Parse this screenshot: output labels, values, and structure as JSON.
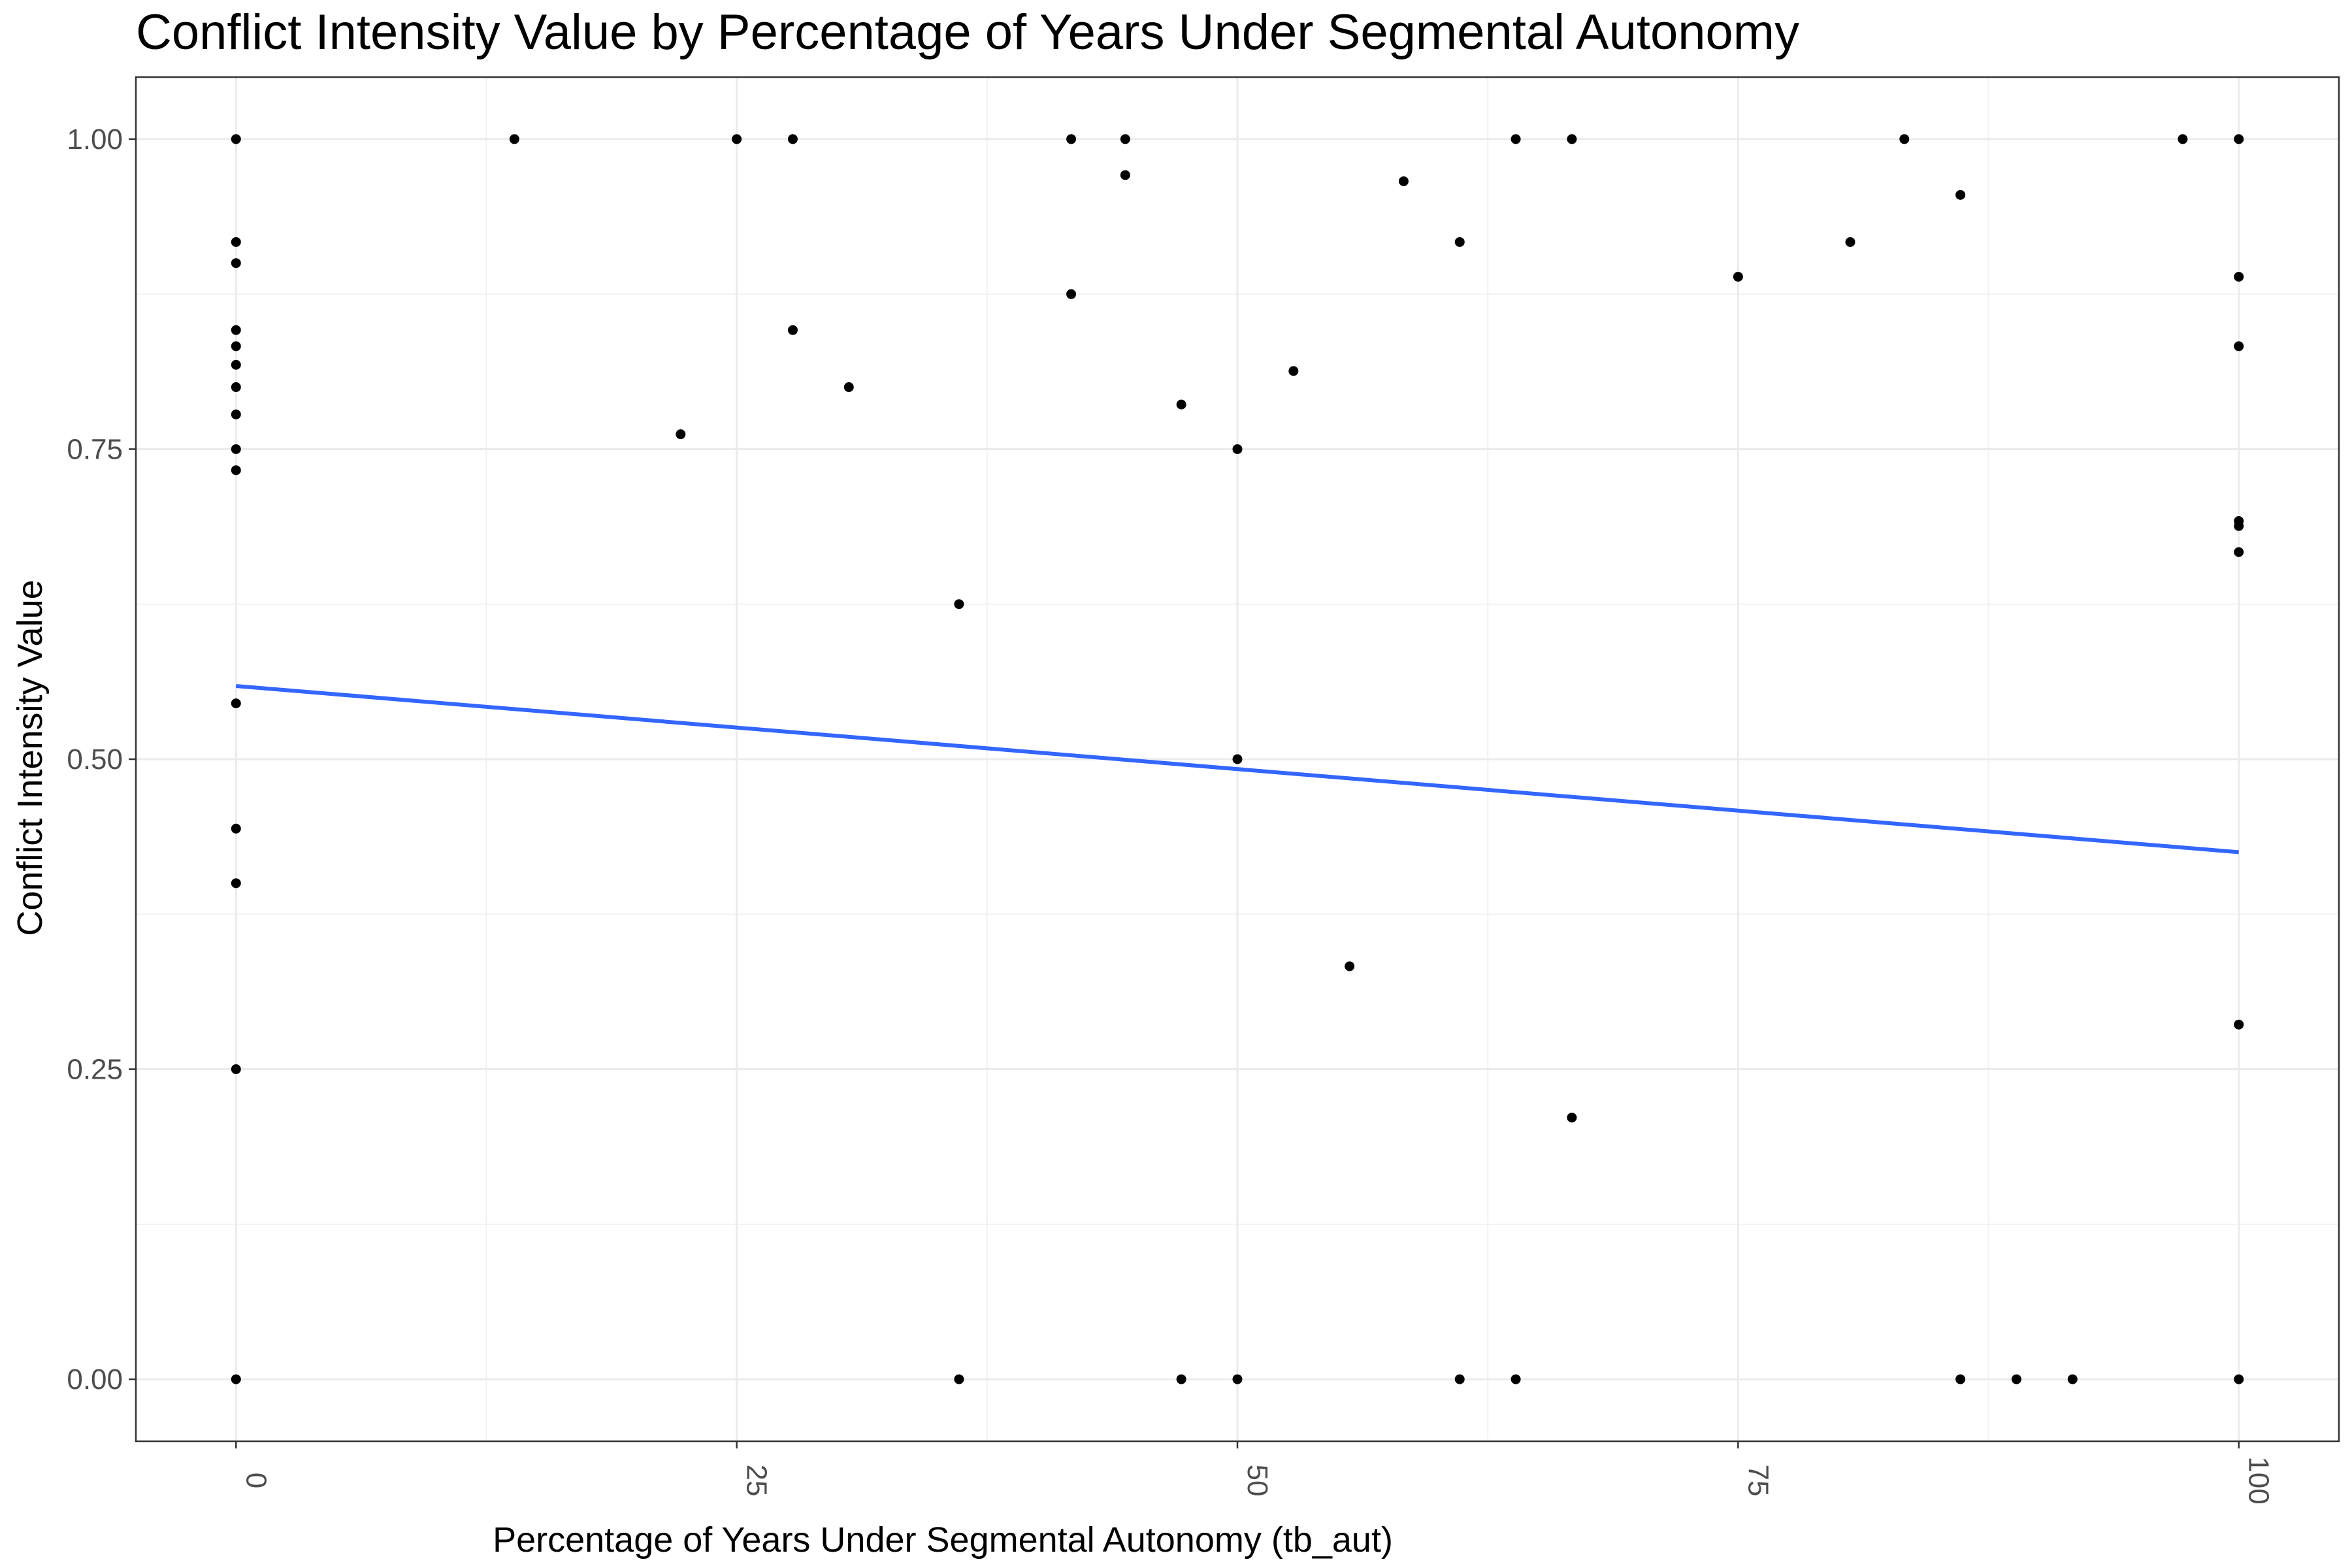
{
  "chart_data": {
    "type": "scatter",
    "title": "Conflict Intensity Value by Percentage of Years Under Segmental Autonomy",
    "xlabel": "Percentage of Years Under Segmental Autonomy (tb_aut)",
    "ylabel": "Conflict Intensity Value",
    "xlim": [
      -5,
      105
    ],
    "ylim": [
      -0.05,
      1.05
    ],
    "x_ticks": [
      0,
      25,
      50,
      75,
      100
    ],
    "x_tick_labels": [
      "0",
      "25",
      "50",
      "75",
      "100"
    ],
    "y_ticks": [
      0,
      0.25,
      0.5,
      0.75,
      1.0
    ],
    "y_tick_labels": [
      "0.00",
      "0.25",
      "0.50",
      "0.75",
      "1.00"
    ],
    "grid": true,
    "theme": "black-and-white",
    "point_color": "#000000",
    "trend_color": "#3366FF",
    "series": [
      {
        "points": [
          [
            0,
            1.0
          ],
          [
            0,
            0.917
          ],
          [
            0,
            0.9
          ],
          [
            0,
            0.846
          ],
          [
            0,
            0.833
          ],
          [
            0,
            0.818
          ],
          [
            0,
            0.8
          ],
          [
            0,
            0.778
          ],
          [
            0,
            0.75
          ],
          [
            0,
            0.733
          ],
          [
            0,
            0.545
          ],
          [
            0,
            0.444
          ],
          [
            0,
            0.4
          ],
          [
            0,
            0.25
          ],
          [
            0,
            0.0
          ],
          [
            13.9,
            1.0
          ],
          [
            22.2,
            0.762
          ],
          [
            25,
            1.0
          ],
          [
            27.8,
            1.0
          ],
          [
            27.8,
            0.846
          ],
          [
            30.6,
            0.8
          ],
          [
            36.1,
            0.625
          ],
          [
            36.1,
            0.0
          ],
          [
            41.7,
            1.0
          ],
          [
            41.7,
            0.875
          ],
          [
            44.4,
            1.0
          ],
          [
            44.4,
            0.971
          ],
          [
            47.2,
            0.786
          ],
          [
            47.2,
            0.0
          ],
          [
            50,
            0.75
          ],
          [
            50,
            0.5
          ],
          [
            50,
            0.0
          ],
          [
            52.8,
            0.813
          ],
          [
            55.6,
            0.333
          ],
          [
            58.3,
            0.966
          ],
          [
            61.1,
            0.917
          ],
          [
            61.1,
            0.0
          ],
          [
            63.9,
            1.0
          ],
          [
            63.9,
            0.0
          ],
          [
            66.7,
            1.0
          ],
          [
            66.7,
            0.211
          ],
          [
            75,
            0.889
          ],
          [
            80.6,
            0.917
          ],
          [
            83.3,
            1.0
          ],
          [
            86.1,
            0.955
          ],
          [
            86.1,
            0.0
          ],
          [
            88.9,
            0.0
          ],
          [
            91.7,
            0.0
          ],
          [
            97.2,
            1.0
          ],
          [
            100,
            1.0
          ],
          [
            100,
            0.889
          ],
          [
            100,
            0.833
          ],
          [
            100,
            0.692
          ],
          [
            100,
            0.688
          ],
          [
            100,
            0.667
          ],
          [
            100,
            0.286
          ],
          [
            100,
            0.0
          ]
        ]
      }
    ],
    "trend_line": {
      "method": "linear",
      "x": [
        0,
        100
      ],
      "y": [
        0.559,
        0.425
      ]
    }
  }
}
